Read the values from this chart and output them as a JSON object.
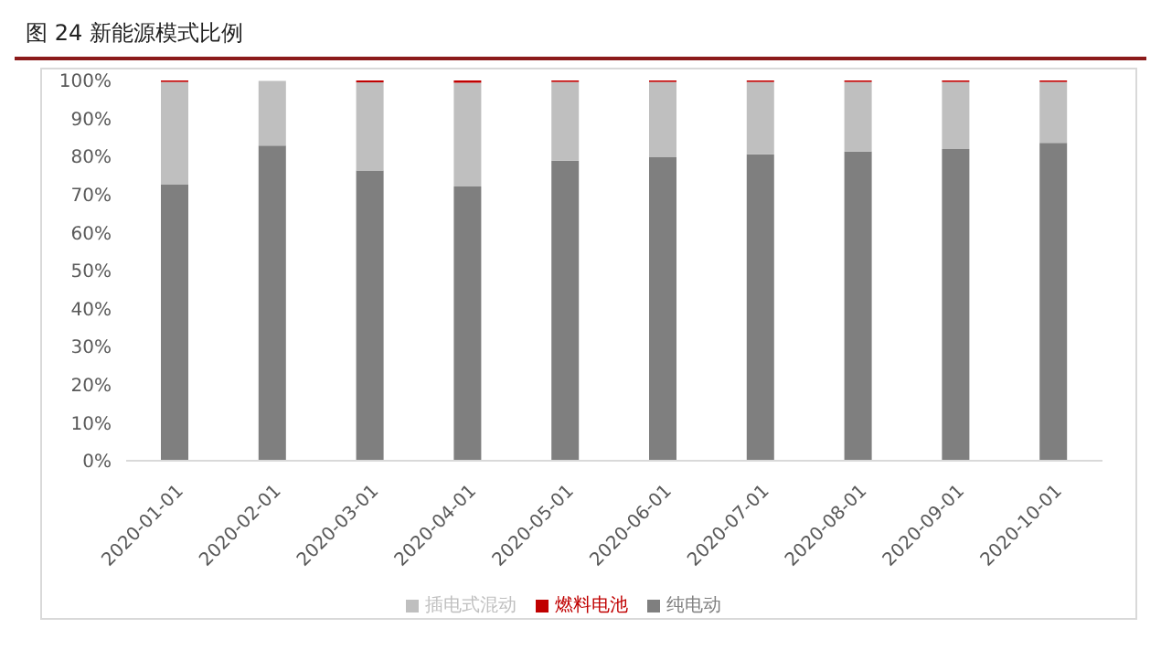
{
  "chart_data": {
    "type": "bar",
    "title": "图 24 新能源模式比例",
    "stacked": true,
    "legend": "bottom",
    "grid": false,
    "categories": [
      "2020-01-01",
      "2020-02-01",
      "2020-03-01",
      "2020-04-01",
      "2020-05-01",
      "2020-06-01",
      "2020-07-01",
      "2020-08-01",
      "2020-09-01",
      "2020-10-01"
    ],
    "series": [
      {
        "name": "纯电动",
        "color": "#7f7f7f",
        "values": [
          72.6,
          82.9,
          76.3,
          72.1,
          78.9,
          79.9,
          80.6,
          81.3,
          82.0,
          83.6
        ]
      },
      {
        "name": "插电式混动",
        "color": "#bfbfbf",
        "values": [
          27.0,
          17.0,
          23.2,
          27.3,
          20.7,
          19.7,
          19.0,
          18.3,
          17.6,
          16.0
        ]
      },
      {
        "name": "燃料电池",
        "color": "#c00000",
        "values": [
          0.4,
          null,
          0.5,
          0.6,
          0.4,
          0.4,
          0.4,
          0.4,
          0.4,
          0.4
        ]
      }
    ],
    "ylim": [
      0,
      100
    ],
    "yticks": [
      {
        "value": 0,
        "label": "0%"
      },
      {
        "value": 10,
        "label": "10%"
      },
      {
        "value": 20,
        "label": "20%"
      },
      {
        "value": 30,
        "label": "30%"
      },
      {
        "value": 40,
        "label": "40%"
      },
      {
        "value": 50,
        "label": "50%"
      },
      {
        "value": 60,
        "label": "60%"
      },
      {
        "value": 70,
        "label": "70%"
      },
      {
        "value": 80,
        "label": "80%"
      },
      {
        "value": 90,
        "label": "90%"
      },
      {
        "value": 100,
        "label": "100%"
      }
    ]
  }
}
